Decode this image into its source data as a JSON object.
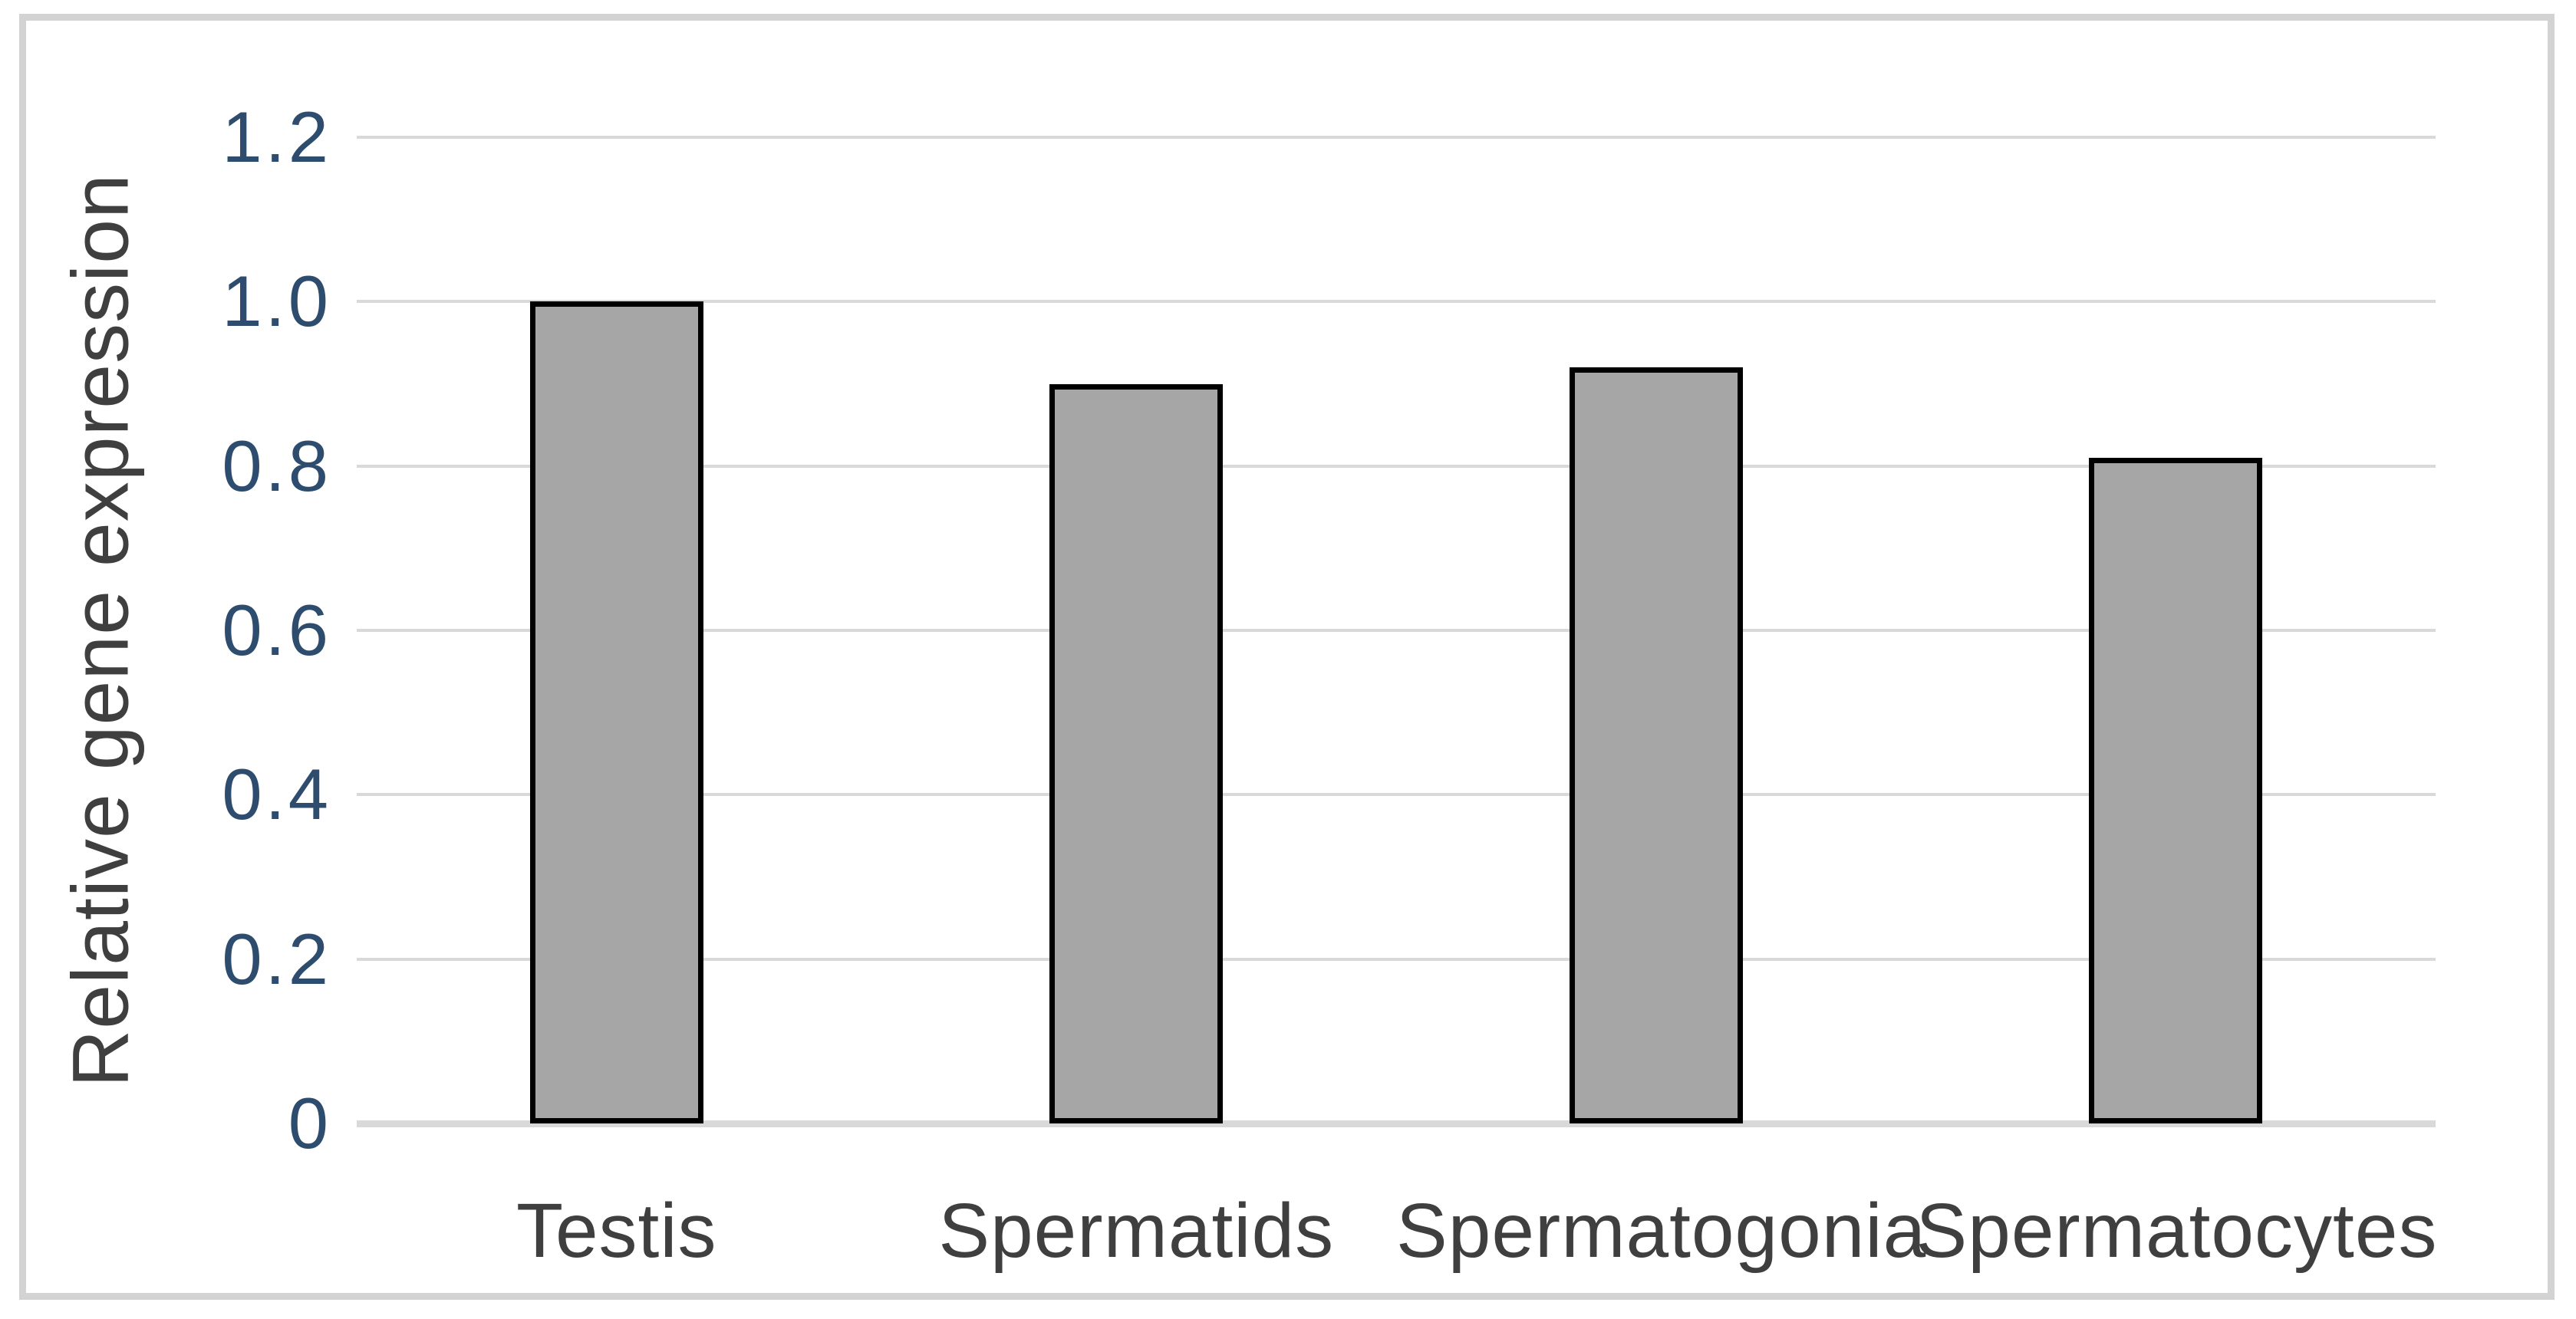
{
  "chart_data": {
    "type": "bar",
    "title": "",
    "xlabel": "",
    "ylabel": "Relative gene expression",
    "categories": [
      "Testis",
      "Spermatids",
      "Spermatogonia",
      "Spermatocytes"
    ],
    "values": [
      1.0,
      0.9,
      0.92,
      0.81
    ],
    "ylim": [
      0,
      1.2
    ],
    "yticks": [
      {
        "label": "0",
        "value": 0
      },
      {
        "label": "0.2",
        "value": 0.2
      },
      {
        "label": "0.4",
        "value": 0.4
      },
      {
        "label": "0.6",
        "value": 0.6
      },
      {
        "label": "0.8",
        "value": 0.8
      },
      {
        "label": "1.0",
        "value": 1.0
      },
      {
        "label": "1.2",
        "value": 1.2
      }
    ],
    "grid": "horizontal gridlines on",
    "legend": "none",
    "colors": {
      "bar_fill": "#a6a6a6",
      "bar_border": "#000000",
      "gridline": "#d9d9d9",
      "axis_line": "#d9d9d9",
      "tick_label": "#2e4d6e",
      "category_label": "#3f3f3f",
      "axis_title": "#3f3f3f",
      "frame_border": "#d3d3d3",
      "background": "#ffffff"
    }
  }
}
